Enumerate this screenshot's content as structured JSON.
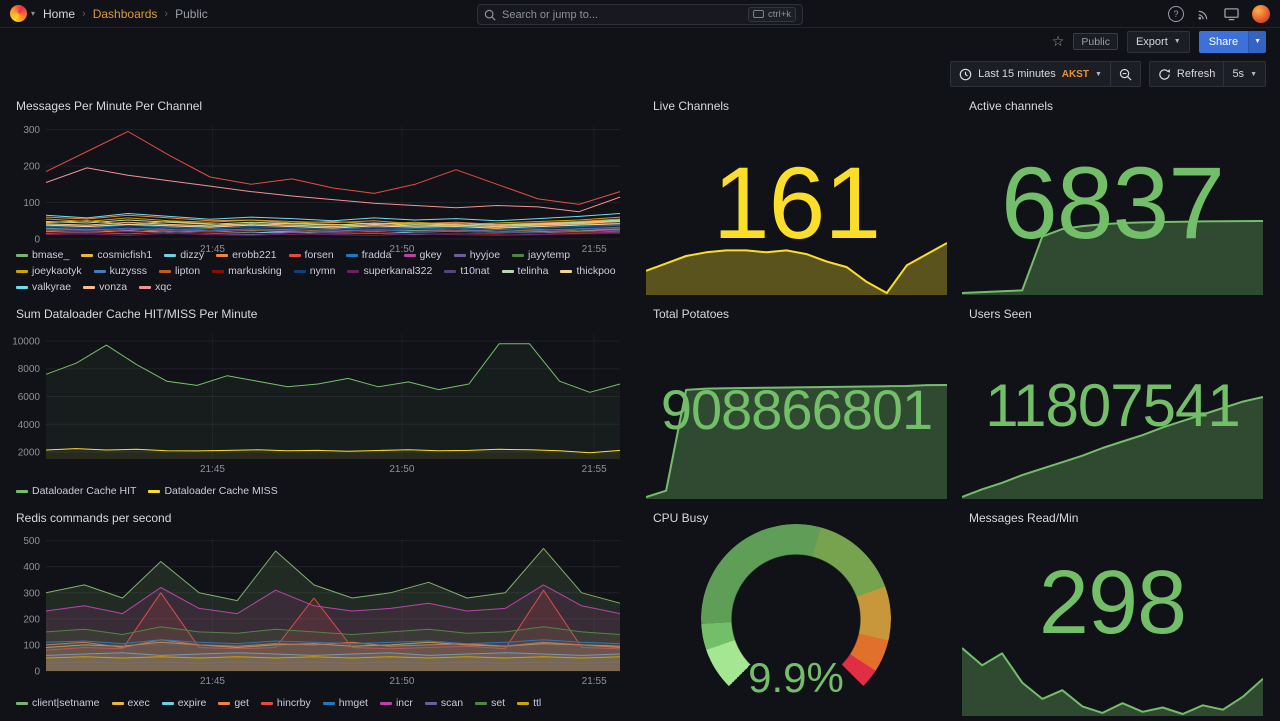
{
  "nav": {
    "breadcrumb": [
      {
        "label": "Home"
      },
      {
        "label": "Dashboards"
      },
      {
        "label": "Public"
      }
    ],
    "search": {
      "placeholder": "Search or jump to...",
      "shortcut": "ctrl+k"
    }
  },
  "toolbar": {
    "tag": "Public",
    "export": "Export",
    "share": "Share"
  },
  "timebar": {
    "range": "Last 15 minutes",
    "tz": "AKST",
    "refresh": "Refresh",
    "interval": "5s"
  },
  "panels": {
    "messages": {
      "title": "Messages Per Minute Per Channel"
    },
    "live": {
      "title": "Live Channels",
      "value": "161",
      "color": "#FADE2A"
    },
    "active": {
      "title": "Active channels",
      "value": "6837",
      "color": "#73BF69"
    },
    "dataloader": {
      "title": "Sum Dataloader Cache HIT/MISS Per Minute"
    },
    "potatoes": {
      "title": "Total Potatoes",
      "value": "908866801",
      "color": "#73BF69"
    },
    "users": {
      "title": "Users Seen",
      "value": "11807541",
      "color": "#73BF69"
    },
    "redis": {
      "title": "Redis commands per second"
    },
    "cpu": {
      "title": "CPU Busy",
      "display": "9.9%",
      "value": 9.9,
      "color": "#73BF69"
    },
    "read": {
      "title": "Messages Read/Min",
      "value": "298",
      "color": "#73BF69"
    }
  },
  "chart_data": {
    "timeseries": {
      "messages": {
        "type": "line",
        "ylim": [
          0,
          310
        ],
        "yticks": [
          0,
          100,
          200,
          300
        ],
        "fill": 0,
        "xticks": [
          {
            "label": "21:45",
            "f": 0.29
          },
          {
            "label": "21:50",
            "f": 0.62
          },
          {
            "label": "21:55",
            "f": 0.955
          }
        ],
        "series": [
          {
            "name": "bmase_",
            "color": "#7EB26D",
            "values": [
              30,
              25,
              28,
              22,
              26,
              24,
              20,
              22,
              25,
              23,
              21,
              24,
              26,
              22,
              28
            ]
          },
          {
            "name": "cosmicfish1",
            "color": "#EAB839",
            "values": [
              45,
              50,
              40,
              48,
              42,
              38,
              44,
              40,
              36,
              42,
              38,
              35,
              40,
              44,
              50
            ]
          },
          {
            "name": "dizzy",
            "color": "#6ED0E0",
            "values": [
              20,
              18,
              22,
              19,
              21,
              17,
              20,
              18,
              16,
              19,
              21,
              18,
              20,
              17,
              22
            ]
          },
          {
            "name": "erobb221",
            "color": "#EF843C",
            "values": [
              60,
              55,
              65,
              58,
              50,
              52,
              48,
              45,
              50,
              42,
              46,
              40,
              44,
              48,
              55
            ]
          },
          {
            "name": "forsen",
            "color": "#E24D42",
            "values": [
              185,
              240,
              295,
              230,
              170,
              150,
              165,
              140,
              125,
              150,
              190,
              150,
              110,
              95,
              130
            ]
          },
          {
            "name": "fradda",
            "color": "#1F78C1",
            "values": [
              35,
              30,
              38,
              32,
              28,
              34,
              30,
              26,
              32,
              28,
              30,
              26,
              30,
              34,
              38
            ]
          },
          {
            "name": "gkey",
            "color": "#BA43A9",
            "values": [
              25,
              28,
              24,
              30,
              26,
              22,
              28,
              24,
              20,
              26,
              22,
              26,
              24,
              20,
              26
            ]
          },
          {
            "name": "hyyjoe",
            "color": "#705DA0",
            "values": [
              15,
              18,
              14,
              20,
              16,
              12,
              18,
              14,
              16,
              12,
              16,
              14,
              12,
              16,
              18
            ]
          },
          {
            "name": "jayytemp",
            "color": "#508642",
            "values": [
              40,
              36,
              42,
              38,
              34,
              40,
              36,
              32,
              38,
              34,
              36,
              32,
              36,
              40,
              44
            ]
          },
          {
            "name": "joeykaotyk",
            "color": "#CCA300",
            "values": [
              55,
              48,
              58,
              50,
              46,
              52,
              44,
              48,
              42,
              46,
              40,
              44,
              48,
              52,
              60
            ]
          },
          {
            "name": "kuzysss",
            "color": "#447EBC",
            "values": [
              28,
              24,
              30,
              26,
              22,
              28,
              24,
              26,
              22,
              26,
              24,
              20,
              24,
              28,
              32
            ]
          },
          {
            "name": "lipton",
            "color": "#C15C17",
            "values": [
              22,
              26,
              20,
              24,
              28,
              22,
              26,
              20,
              24,
              20,
              24,
              28,
              22,
              26,
              30
            ]
          },
          {
            "name": "markusking",
            "color": "#890F02",
            "values": [
              18,
              16,
              20,
              14,
              18,
              16,
              12,
              16,
              18,
              14,
              16,
              12,
              16,
              18,
              20
            ]
          },
          {
            "name": "nymn",
            "color": "#0A437C",
            "values": [
              32,
              28,
              34,
              30,
              26,
              32,
              28,
              24,
              30,
              26,
              28,
              24,
              28,
              32,
              36
            ]
          },
          {
            "name": "superkanal322",
            "color": "#6D1F62",
            "values": [
              12,
              14,
              10,
              16,
              12,
              10,
              14,
              12,
              10,
              14,
              12,
              10,
              12,
              14,
              16
            ]
          },
          {
            "name": "t10nat",
            "color": "#584477",
            "values": [
              26,
              22,
              28,
              24,
              20,
              26,
              22,
              18,
              24,
              20,
              22,
              18,
              22,
              26,
              30
            ]
          },
          {
            "name": "telinha",
            "color": "#B7DBAB",
            "values": [
              48,
              44,
              52,
              46,
              40,
              46,
              42,
              38,
              44,
              40,
              42,
              38,
              42,
              46,
              52
            ]
          },
          {
            "name": "thickpoo",
            "color": "#F4D598",
            "values": [
              38,
              34,
              40,
              36,
              32,
              38,
              34,
              30,
              36,
              32,
              34,
              30,
              34,
              38,
              42
            ]
          },
          {
            "name": "valkyrae",
            "color": "#70DBED",
            "values": [
              65,
              58,
              70,
              62,
              54,
              60,
              56,
              50,
              58,
              52,
              56,
              50,
              56,
              62,
              70
            ]
          },
          {
            "name": "vonza",
            "color": "#F9BA8F",
            "values": [
              42,
              38,
              46,
              40,
              36,
              42,
              38,
              34,
              40,
              36,
              38,
              34,
              38,
              42,
              48
            ]
          },
          {
            "name": "xqc",
            "color": "#F29191",
            "values": [
              155,
              195,
              175,
              160,
              145,
              130,
              118,
              108,
              98,
              92,
              86,
              92,
              88,
              75,
              115
            ]
          }
        ]
      },
      "dataloader": {
        "type": "line",
        "ylim": [
          1500,
          10500
        ],
        "yticks": [
          2000,
          4000,
          6000,
          8000,
          10000
        ],
        "fill": 0.07,
        "xticks": [
          {
            "label": "21:45",
            "f": 0.29
          },
          {
            "label": "21:50",
            "f": 0.62
          },
          {
            "label": "21:55",
            "f": 0.955
          }
        ],
        "series": [
          {
            "name": "Dataloader Cache HIT",
            "color": "#73BF69",
            "values": [
              7600,
              8400,
              9700,
              8300,
              7100,
              6800,
              7500,
              7100,
              6700,
              6900,
              7300,
              6700,
              7050,
              6500,
              6900,
              9800,
              9800,
              7100,
              6300,
              6900
            ]
          },
          {
            "name": "Dataloader Cache MISS",
            "color": "#FADE2A",
            "values": [
              2150,
              2250,
              2150,
              2200,
              2100,
              2080,
              2120,
              2160,
              2100,
              2120,
              2060,
              2110,
              2160,
              2100,
              2120,
              2200,
              2160,
              2100,
              1950,
              2120
            ]
          }
        ]
      },
      "redis": {
        "type": "line",
        "ylim": [
          0,
          510
        ],
        "yticks": [
          0,
          100,
          200,
          300,
          400,
          500
        ],
        "fill": 0.15,
        "xticks": [
          {
            "label": "21:45",
            "f": 0.29
          },
          {
            "label": "21:50",
            "f": 0.62
          },
          {
            "label": "21:55",
            "f": 0.955
          }
        ],
        "series": [
          {
            "name": "client|setname",
            "color": "#7EB26D",
            "values": [
              300,
              330,
              280,
              420,
              300,
              270,
              460,
              330,
              280,
              300,
              340,
              280,
              300,
              470,
              300,
              260
            ]
          },
          {
            "name": "exec",
            "color": "#EAB839",
            "values": [
              90,
              100,
              95,
              110,
              100,
              90,
              100,
              105,
              95,
              100,
              110,
              100,
              95,
              105,
              100,
              95
            ]
          },
          {
            "name": "expire",
            "color": "#6ED0E0",
            "values": [
              60,
              65,
              70,
              60,
              65,
              70,
              65,
              60,
              65,
              70,
              60,
              65,
              70,
              65,
              60,
              65
            ]
          },
          {
            "name": "get",
            "color": "#EF843C",
            "values": [
              100,
              110,
              90,
              120,
              100,
              95,
              105,
              100,
              110,
              95,
              100,
              105,
              95,
              110,
              100,
              90
            ]
          },
          {
            "name": "hincrby",
            "color": "#E24D42",
            "values": [
              80,
              90,
              85,
              300,
              90,
              85,
              90,
              280,
              90,
              85,
              90,
              95,
              85,
              310,
              90,
              85
            ]
          },
          {
            "name": "hmget",
            "color": "#1F78C1",
            "values": [
              110,
              115,
              105,
              120,
              110,
              105,
              115,
              110,
              105,
              110,
              115,
              105,
              110,
              120,
              110,
              105
            ]
          },
          {
            "name": "incr",
            "color": "#BA43A9",
            "values": [
              230,
              250,
              220,
              320,
              240,
              220,
              310,
              250,
              230,
              240,
              260,
              230,
              240,
              330,
              250,
              220
            ]
          },
          {
            "name": "scan",
            "color": "#705DA0",
            "values": [
              30,
              35,
              30,
              35,
              30,
              35,
              30,
              35,
              30,
              35,
              30,
              35,
              30,
              35,
              30,
              35
            ]
          },
          {
            "name": "set",
            "color": "#508642",
            "values": [
              150,
              160,
              140,
              170,
              150,
              145,
              160,
              150,
              140,
              150,
              160,
              145,
              150,
              170,
              150,
              140
            ]
          },
          {
            "name": "ttl",
            "color": "#CCA300",
            "values": [
              50,
              55,
              50,
              55,
              50,
              55,
              50,
              55,
              50,
              55,
              50,
              55,
              50,
              55,
              50,
              55
            ]
          }
        ]
      }
    },
    "sparklines": {
      "live": {
        "color": "#FADE2A",
        "fill": 0.32,
        "values": [
          146,
          150,
          154,
          156,
          157,
          157,
          156,
          157,
          155,
          151,
          148,
          140,
          134,
          149,
          155,
          161
        ]
      },
      "active": {
        "color": "#73BF69",
        "fill": 0.32,
        "values": [
          5180,
          5200,
          5220,
          5240,
          6480,
          6650,
          6720,
          6760,
          6790,
          6805,
          6815,
          6822,
          6828,
          6832,
          6835,
          6837
        ]
      },
      "potatoes": {
        "color": "#73BF69",
        "fill": 0.32,
        "values": [
          820000000,
          825000000,
          905000000,
          906000000,
          906300000,
          906500000,
          906700000,
          906900000,
          907100000,
          907300000,
          907500000,
          907700000,
          907900000,
          908100000,
          908800000,
          908866801
        ]
      },
      "users": {
        "color": "#73BF69",
        "fill": 0.32,
        "values": [
          11730000,
          11736000,
          11741000,
          11747000,
          11752000,
          11757000,
          11762000,
          11768000,
          11773000,
          11778000,
          11784000,
          11789000,
          11794000,
          11799000,
          11804000,
          11807541
        ]
      },
      "read": {
        "color": "#73BF69",
        "fill": 0.32,
        "values": [
          440,
          360,
          415,
          280,
          205,
          245,
          170,
          140,
          185,
          145,
          165,
          135,
          175,
          155,
          215,
          298
        ]
      }
    },
    "gauge": {
      "type": "gauge",
      "title": "CPU Busy",
      "value": 9.9,
      "min": 0,
      "max": 100,
      "display": "9.9%"
    }
  }
}
